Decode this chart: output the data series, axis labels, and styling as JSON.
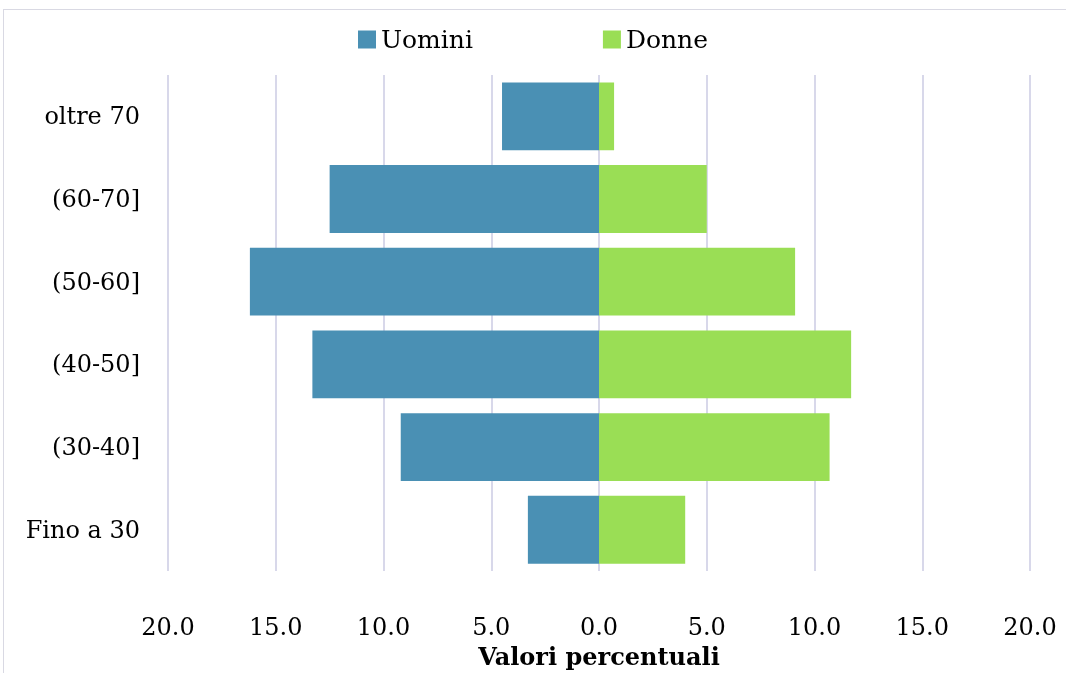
{
  "chart_data": {
    "type": "bar",
    "orientation": "horizontal",
    "stacked": true,
    "xlabel": "Valori percentuali",
    "categories": [
      "oltre 70",
      "(60-70]",
      "(50-60]",
      "(40-50]",
      "(30-40]",
      "Fino a 30"
    ],
    "series": [
      {
        "name": "Uomini",
        "color": "#4a90b4",
        "values": [
          -4.5,
          -12.5,
          -16.2,
          -13.3,
          -9.2,
          -3.3
        ]
      },
      {
        "name": "Donne",
        "color": "#9ade55",
        "values": [
          0.7,
          5.0,
          9.1,
          11.7,
          10.7,
          4.0
        ]
      }
    ],
    "xlim": [
      -20,
      20
    ],
    "xticks": [
      {
        "value": -20,
        "label": "20.0"
      },
      {
        "value": -15,
        "label": "15.0"
      },
      {
        "value": -10,
        "label": "10.0"
      },
      {
        "value": -5,
        "label": "5.0"
      },
      {
        "value": 0,
        "label": "0.0"
      },
      {
        "value": 5,
        "label": "5.0"
      },
      {
        "value": 10,
        "label": "10.0"
      },
      {
        "value": 15,
        "label": "15.0"
      },
      {
        "value": 20,
        "label": "20.0"
      }
    ],
    "grid": "x",
    "legend": "top"
  }
}
